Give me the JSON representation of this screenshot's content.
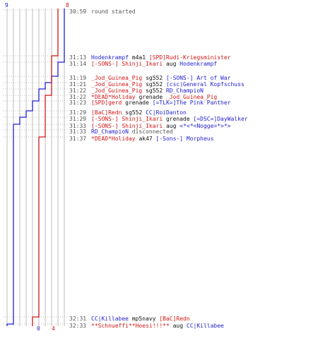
{
  "colors": {
    "blue": "#1e1ecf",
    "red": "#d01515",
    "grid": "#bdbdbd",
    "gray": "#555555"
  },
  "chart_data": {
    "type": "line",
    "axis_top": {
      "blue_start": "9",
      "red_start": "8"
    },
    "axis_bottom": {
      "blue_end": "0",
      "red_end": "4"
    },
    "series": [
      {
        "color": "blue",
        "steps": [
          9,
          9,
          8,
          7,
          6,
          5,
          4,
          3,
          2,
          1,
          1,
          0
        ]
      },
      {
        "color": "red",
        "steps": [
          8,
          8,
          8,
          8,
          8,
          8,
          8,
          8,
          7,
          6,
          5,
          4
        ]
      }
    ]
  },
  "events": [
    {
      "time": "30:59",
      "parts": [
        {
          "t": "round started",
          "c": "gray"
        }
      ]
    },
    {
      "time": "31:13",
      "parts": [
        {
          "t": "Hodenkrampf",
          "c": "blue"
        },
        {
          "t": " m4a1 ",
          "c": "black"
        },
        {
          "t": "[SPD]Rudi-Kriegsminister",
          "c": "red"
        }
      ]
    },
    {
      "time": "31:14",
      "parts": [
        {
          "t": "[-SONS-] Shinji_Ikari",
          "c": "red"
        },
        {
          "t": " aug ",
          "c": "black"
        },
        {
          "t": "Hodenkrampf",
          "c": "blue"
        }
      ]
    },
    {
      "time": "31:19",
      "parts": [
        {
          "t": "_Jod_Guinea_Pig",
          "c": "red"
        },
        {
          "t": " sg552 ",
          "c": "black"
        },
        {
          "t": "[-SONS-] Art of War",
          "c": "blue"
        }
      ]
    },
    {
      "time": "31:21",
      "parts": [
        {
          "t": "_Jod_Guinea_Pig",
          "c": "red"
        },
        {
          "t": " sg552 ",
          "c": "black"
        },
        {
          "t": "(csc)General Kopfschuss",
          "c": "blue"
        }
      ]
    },
    {
      "time": "31:22",
      "parts": [
        {
          "t": "_Jod_Guinea_Pig",
          "c": "red"
        },
        {
          "t": " sg552 ",
          "c": "black"
        },
        {
          "t": "RD_ChampioN",
          "c": "blue"
        }
      ]
    },
    {
      "time": "31:22",
      "parts": [
        {
          "t": "*DEAD*Holiday",
          "c": "red"
        },
        {
          "t": " grenade ",
          "c": "black"
        },
        {
          "t": "_Jod_Guinea_Pig",
          "c": "red"
        }
      ]
    },
    {
      "time": "31:23",
      "parts": [
        {
          "t": "[SPD]gerd",
          "c": "red"
        },
        {
          "t": " grenade ",
          "c": "black"
        },
        {
          "t": "[=TLK=]The Pink Panther",
          "c": "blue"
        }
      ]
    },
    {
      "time": "31:29",
      "parts": [
        {
          "t": "[BaC]Redn",
          "c": "red"
        },
        {
          "t": " sg552 ",
          "c": "black"
        },
        {
          "t": "CC|RoiDanton",
          "c": "blue"
        }
      ]
    },
    {
      "time": "31:29",
      "parts": [
        {
          "t": "[-SONS-] Shinji_Ikari",
          "c": "red"
        },
        {
          "t": " grenade ",
          "c": "black"
        },
        {
          "t": "[=DSC=]DayWalker",
          "c": "blue"
        }
      ]
    },
    {
      "time": "31:33",
      "parts": [
        {
          "t": "[-SONS-] Shinji_Ikari",
          "c": "red"
        },
        {
          "t": " aug ",
          "c": "black"
        },
        {
          "t": "<*<*<Nogge>*>*>",
          "c": "blue"
        }
      ]
    },
    {
      "time": "31:33",
      "parts": [
        {
          "t": "RD_ChampioN",
          "c": "blue"
        },
        {
          "t": " disconnected",
          "c": "gray"
        }
      ]
    },
    {
      "time": "31:37",
      "parts": [
        {
          "t": "*DEAD*Holiday",
          "c": "red"
        },
        {
          "t": " ak47 ",
          "c": "black"
        },
        {
          "t": "[-Sons-] Morpheus",
          "c": "blue"
        }
      ]
    },
    {
      "time": "32:31",
      "parts": [
        {
          "t": "CC|Killabee",
          "c": "blue"
        },
        {
          "t": " mp5navy ",
          "c": "black"
        },
        {
          "t": "[BaC]Redn",
          "c": "red"
        }
      ]
    },
    {
      "time": "32:33",
      "parts": [
        {
          "t": "**Schnueffi**Hoesi!!!**",
          "c": "red"
        },
        {
          "t": " aug ",
          "c": "black"
        },
        {
          "t": "CC|Killabee",
          "c": "blue"
        }
      ]
    }
  ]
}
